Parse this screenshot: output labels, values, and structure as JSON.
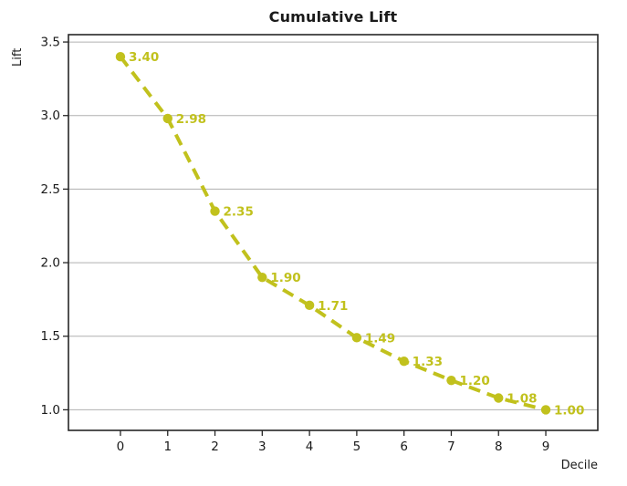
{
  "chart_data": {
    "type": "line",
    "title": "Cumulative Lift",
    "xlabel": "Decile",
    "ylabel": "Lift",
    "x": [
      0,
      1,
      2,
      3,
      4,
      5,
      6,
      7,
      8,
      9
    ],
    "values": [
      3.4,
      2.98,
      2.35,
      1.9,
      1.71,
      1.49,
      1.33,
      1.2,
      1.08,
      1.0
    ],
    "point_labels": [
      "3.40",
      "2.98",
      "2.35",
      "1.90",
      "1.71",
      "1.49",
      "1.33",
      "1.20",
      "1.08",
      "1.00"
    ],
    "xtick_labels": [
      "0",
      "1",
      "2",
      "3",
      "4",
      "5",
      "6",
      "7",
      "8",
      "9"
    ],
    "ytick_values": [
      1.0,
      1.5,
      2.0,
      2.5,
      3.0,
      3.5
    ],
    "ytick_labels": [
      "1.0",
      "1.5",
      "2.0",
      "2.5",
      "3.0",
      "3.5"
    ],
    "xlim": [
      -1.1,
      10.1
    ],
    "ylim": [
      0.86,
      3.55
    ],
    "grid": "horizontal",
    "legend": "none",
    "line_style": "dashed",
    "marker": "circle",
    "colors": {
      "series": "#c1c11d",
      "grid": "#b0b0b0",
      "axis": "#262626",
      "text": "#1a1a1a",
      "background": "#ffffff"
    }
  }
}
